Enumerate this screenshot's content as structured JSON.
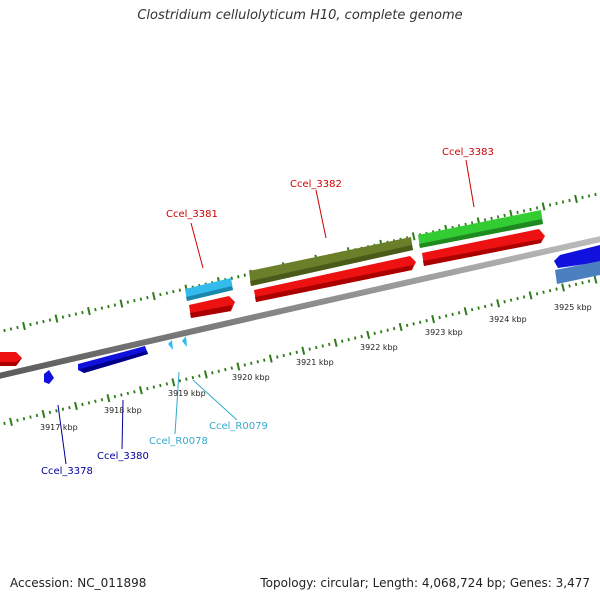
{
  "title": "Clostridium cellulolyticum H10, complete genome",
  "footer": {
    "accession": "Accession: NC_011898",
    "summary": "Topology: circular; Length: 4,068,724 bp; Genes: 3,477"
  },
  "colors": {
    "backbone": "#8a8a8a",
    "ticks": "#2e7d1a",
    "forward_cds": "#ee1111",
    "reverse_cds": "#1111dd",
    "rna": "#33bbee",
    "olive_feature": "#6b7f2a",
    "green_feature": "#33cc33",
    "steel_feature": "#4a80c0",
    "label_red": "#cc0000",
    "label_blue": "#000099",
    "label_cyan": "#33aacc"
  },
  "scale_labels": [
    "3917 kbp",
    "3918 kbp",
    "3919 kbp",
    "3920 kbp",
    "3921 kbp",
    "3922 kbp",
    "3923 kbp",
    "3924 kbp",
    "3925 kbp"
  ],
  "gene_labels": [
    {
      "text": "Ccel_3381",
      "kind": "red"
    },
    {
      "text": "Ccel_3382",
      "kind": "red"
    },
    {
      "text": "Ccel_3383",
      "kind": "red"
    },
    {
      "text": "Ccel_3378",
      "kind": "blue"
    },
    {
      "text": "Ccel_3380",
      "kind": "blue"
    },
    {
      "text": "Ccel_R0078",
      "kind": "cyan"
    },
    {
      "text": "Ccel_R0079",
      "kind": "cyan"
    }
  ]
}
